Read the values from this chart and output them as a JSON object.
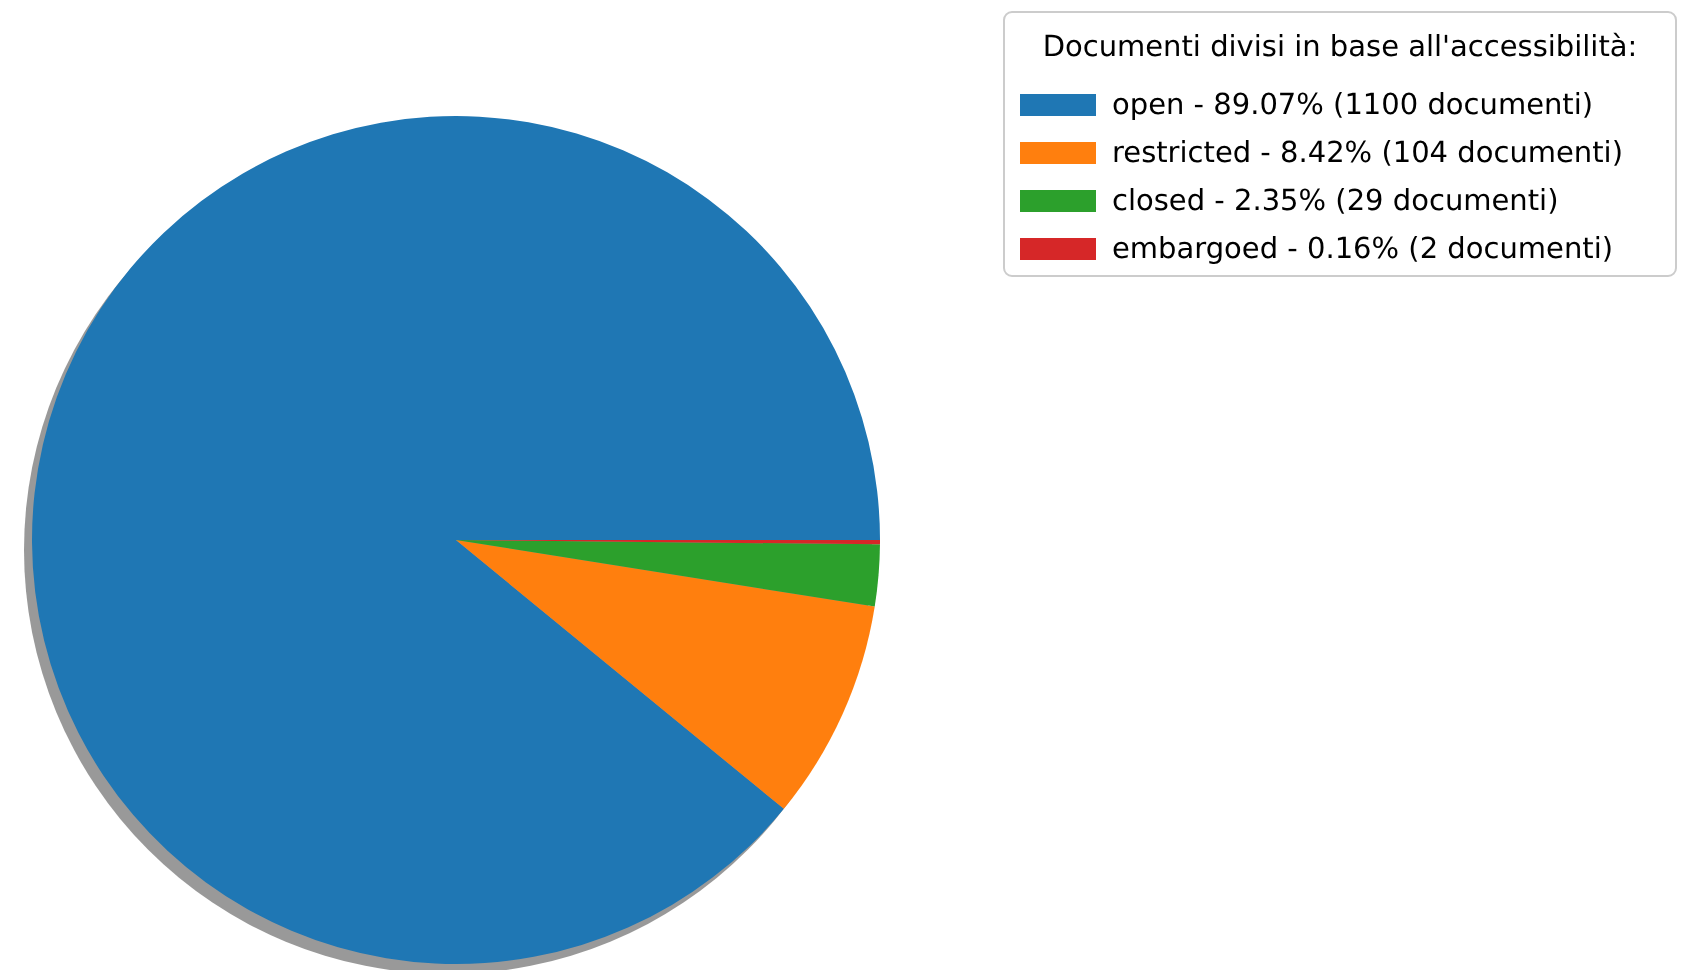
{
  "chart_data": {
    "type": "pie",
    "legend_title": "Documenti divisi in base all'accessibilità:",
    "categories": [
      "open - 89.07% (1100 documenti)",
      "restricted - 8.42% (104 documenti)",
      "closed - 2.35% (29 documenti)",
      "embargoed - 0.16% (2 documenti)"
    ],
    "values": [
      1100,
      104,
      29,
      2
    ],
    "colors": [
      "#1f77b4",
      "#ff7f0e",
      "#2ca02c",
      "#d62728"
    ],
    "legend": "top right"
  }
}
